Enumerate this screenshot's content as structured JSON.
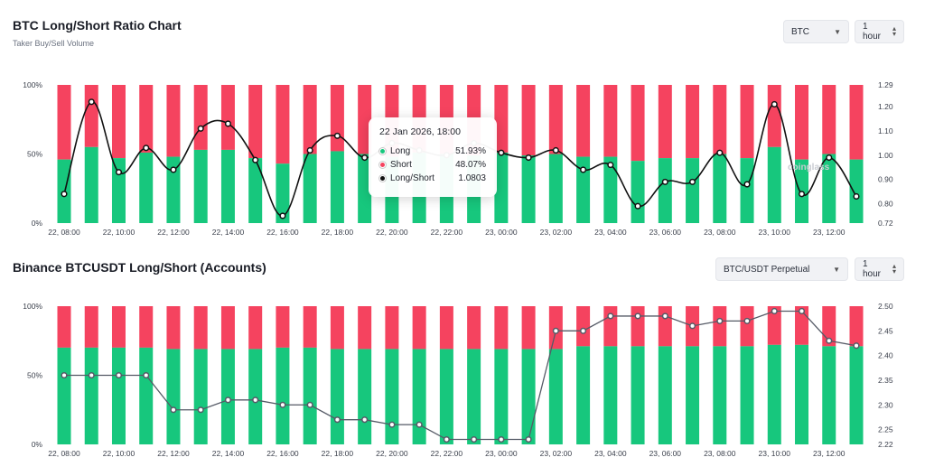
{
  "top": {
    "title": "BTC Long/Short Ratio Chart",
    "subtitle": "Taker Buy/Sell Volume",
    "symbol_select": "BTC",
    "interval_select": "1 hour",
    "watermark": "coinglass",
    "tooltip": {
      "date": "22 Jan 2026, 18:00",
      "long_label": "Long",
      "long_value": "51.93%",
      "short_label": "Short",
      "short_value": "48.07%",
      "ratio_label": "Long/Short",
      "ratio_value": "1.0803"
    }
  },
  "bottom": {
    "title": "Binance BTCUSDT Long/Short (Accounts)",
    "pair_select": "BTC/USDT Perpetual",
    "interval_select": "1 hour"
  },
  "colors": {
    "long": "#17c77d",
    "short": "#f5435f",
    "line_top": "#111111",
    "line_bottom": "#555a66"
  },
  "chart_data": [
    {
      "type": "bar",
      "title": "BTC Long/Short Ratio Chart",
      "x_tick_labels": [
        "22, 08:00",
        "22, 10:00",
        "22, 12:00",
        "22, 14:00",
        "22, 16:00",
        "22, 18:00",
        "22, 20:00",
        "22, 22:00",
        "23, 00:00",
        "23, 02:00",
        "23, 04:00",
        "23, 06:00",
        "23, 08:00",
        "23, 10:00",
        "23, 12:00"
      ],
      "y_left_labels": [
        "100%",
        "50%",
        "0%"
      ],
      "y_right_labels": [
        "1.29",
        "1.20",
        "1.10",
        "1.00",
        "0.90",
        "0.80",
        "0.72"
      ],
      "y_right_range": [
        0.72,
        1.29
      ],
      "series": [
        {
          "name": "Long",
          "axis": "left",
          "values": [
            46,
            55,
            47,
            51,
            48,
            53,
            53,
            47,
            43,
            50,
            52,
            50,
            48,
            51,
            50,
            49,
            51,
            49,
            50,
            48,
            48,
            45,
            47,
            47,
            50,
            47,
            55,
            46,
            50,
            46
          ]
        },
        {
          "name": "Long/Short",
          "axis": "right",
          "values": [
            0.84,
            1.22,
            0.93,
            1.03,
            0.94,
            1.11,
            1.13,
            0.98,
            0.75,
            1.02,
            1.08,
            0.99,
            1.05,
            1.02,
            1.0,
            1.05,
            1.01,
            0.99,
            1.02,
            0.94,
            0.96,
            0.79,
            0.89,
            0.89,
            1.01,
            0.88,
            1.21,
            0.84,
            0.99,
            0.83
          ]
        }
      ]
    },
    {
      "type": "bar",
      "title": "Binance BTCUSDT Long/Short (Accounts)",
      "x_tick_labels": [
        "22, 08:00",
        "22, 10:00",
        "22, 12:00",
        "22, 14:00",
        "22, 16:00",
        "22, 18:00",
        "22, 20:00",
        "22, 22:00",
        "23, 00:00",
        "23, 02:00",
        "23, 04:00",
        "23, 06:00",
        "23, 08:00",
        "23, 10:00",
        "23, 12:00"
      ],
      "y_left_labels": [
        "100%",
        "50%",
        "0%"
      ],
      "y_right_labels": [
        "2.50",
        "2.45",
        "2.40",
        "2.35",
        "2.30",
        "2.25",
        "2.22"
      ],
      "y_right_range": [
        2.22,
        2.5
      ],
      "series": [
        {
          "name": "Long",
          "axis": "left",
          "values": [
            70,
            70,
            70,
            70,
            69,
            69,
            69,
            69,
            70,
            70,
            69,
            69,
            69,
            69,
            69,
            69,
            69,
            69,
            69,
            71,
            71,
            71,
            71,
            71,
            71,
            71,
            72,
            72,
            71,
            71
          ]
        },
        {
          "name": "Long/Short",
          "axis": "right",
          "values": [
            2.36,
            2.36,
            2.36,
            2.36,
            2.29,
            2.29,
            2.31,
            2.31,
            2.3,
            2.3,
            2.27,
            2.27,
            2.26,
            2.26,
            2.23,
            2.23,
            2.23,
            2.23,
            2.45,
            2.45,
            2.48,
            2.48,
            2.48,
            2.46,
            2.47,
            2.47,
            2.49,
            2.49,
            2.43,
            2.42
          ]
        }
      ]
    }
  ]
}
